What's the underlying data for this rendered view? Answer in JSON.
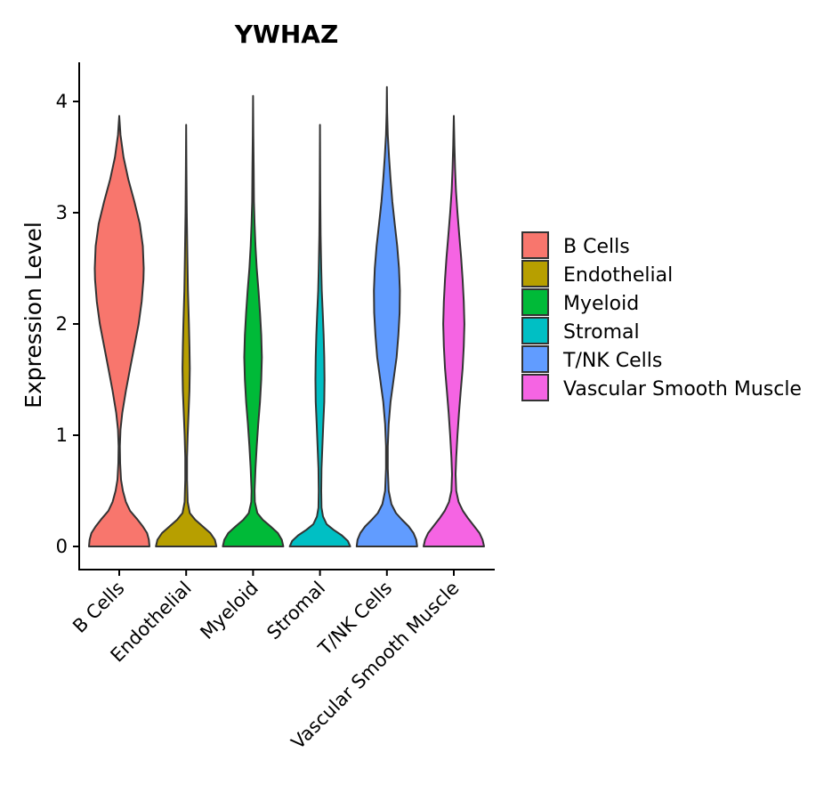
{
  "chart_data": {
    "type": "violin",
    "title": "YWHAZ",
    "xlabel": "",
    "ylabel": "Expression Level",
    "ylim": [
      -0.2,
      4.35
    ],
    "yticks": [
      0,
      1,
      2,
      3,
      4
    ],
    "categories": [
      "B Cells",
      "Endothelial",
      "Myeloid",
      "Stromal",
      "T/NK Cells",
      "Vascular Smooth Muscle"
    ],
    "colors": [
      "#F8766D",
      "#B79F00",
      "#00BA38",
      "#00BFC4",
      "#619CFF",
      "#F564E3"
    ],
    "legend": {
      "title": "",
      "position": "right",
      "entries": [
        "B Cells",
        "Endothelial",
        "Myeloid",
        "Stromal",
        "T/NK Cells",
        "Vascular Smooth Muscle"
      ]
    },
    "series": [
      {
        "name": "B Cells",
        "max": 3.87,
        "density": [
          [
            0,
            1.0
          ],
          [
            0.06,
            0.98
          ],
          [
            0.12,
            0.92
          ],
          [
            0.18,
            0.78
          ],
          [
            0.25,
            0.58
          ],
          [
            0.32,
            0.36
          ],
          [
            0.4,
            0.22
          ],
          [
            0.5,
            0.12
          ],
          [
            0.6,
            0.06
          ],
          [
            0.75,
            0.03
          ],
          [
            0.9,
            0.02
          ],
          [
            1.05,
            0.04
          ],
          [
            1.2,
            0.1
          ],
          [
            1.4,
            0.22
          ],
          [
            1.6,
            0.36
          ],
          [
            1.8,
            0.5
          ],
          [
            2.0,
            0.64
          ],
          [
            2.2,
            0.74
          ],
          [
            2.4,
            0.8
          ],
          [
            2.5,
            0.81
          ],
          [
            2.7,
            0.78
          ],
          [
            2.9,
            0.68
          ],
          [
            3.1,
            0.5
          ],
          [
            3.3,
            0.3
          ],
          [
            3.5,
            0.14
          ],
          [
            3.7,
            0.04
          ],
          [
            3.87,
            0.0
          ]
        ]
      },
      {
        "name": "Endothelial",
        "max": 3.79,
        "density": [
          [
            0,
            1.0
          ],
          [
            0.06,
            0.95
          ],
          [
            0.12,
            0.8
          ],
          [
            0.18,
            0.55
          ],
          [
            0.24,
            0.3
          ],
          [
            0.3,
            0.12
          ],
          [
            0.4,
            0.05
          ],
          [
            0.6,
            0.03
          ],
          [
            0.8,
            0.03
          ],
          [
            1.0,
            0.05
          ],
          [
            1.2,
            0.08
          ],
          [
            1.4,
            0.11
          ],
          [
            1.6,
            0.12
          ],
          [
            1.8,
            0.11
          ],
          [
            2.0,
            0.09
          ],
          [
            2.3,
            0.06
          ],
          [
            2.6,
            0.04
          ],
          [
            3.0,
            0.02
          ],
          [
            3.4,
            0.01
          ],
          [
            3.79,
            0.0
          ]
        ]
      },
      {
        "name": "Myeloid",
        "max": 4.05,
        "density": [
          [
            0,
            1.0
          ],
          [
            0.06,
            0.95
          ],
          [
            0.12,
            0.82
          ],
          [
            0.18,
            0.58
          ],
          [
            0.24,
            0.32
          ],
          [
            0.3,
            0.14
          ],
          [
            0.4,
            0.06
          ],
          [
            0.5,
            0.05
          ],
          [
            0.7,
            0.08
          ],
          [
            0.9,
            0.12
          ],
          [
            1.1,
            0.17
          ],
          [
            1.3,
            0.23
          ],
          [
            1.5,
            0.27
          ],
          [
            1.7,
            0.29
          ],
          [
            1.9,
            0.27
          ],
          [
            2.1,
            0.23
          ],
          [
            2.3,
            0.18
          ],
          [
            2.5,
            0.12
          ],
          [
            2.7,
            0.08
          ],
          [
            2.9,
            0.05
          ],
          [
            3.1,
            0.03
          ],
          [
            3.4,
            0.02
          ],
          [
            3.7,
            0.01
          ],
          [
            4.05,
            0.0
          ]
        ]
      },
      {
        "name": "Stromal",
        "max": 3.79,
        "density": [
          [
            0,
            1.0
          ],
          [
            0.05,
            0.92
          ],
          [
            0.1,
            0.72
          ],
          [
            0.15,
            0.45
          ],
          [
            0.2,
            0.22
          ],
          [
            0.27,
            0.1
          ],
          [
            0.35,
            0.05
          ],
          [
            0.5,
            0.04
          ],
          [
            0.7,
            0.05
          ],
          [
            0.9,
            0.08
          ],
          [
            1.1,
            0.11
          ],
          [
            1.3,
            0.14
          ],
          [
            1.5,
            0.15
          ],
          [
            1.7,
            0.14
          ],
          [
            1.9,
            0.12
          ],
          [
            2.1,
            0.09
          ],
          [
            2.3,
            0.06
          ],
          [
            2.5,
            0.04
          ],
          [
            2.8,
            0.02
          ],
          [
            3.2,
            0.01
          ],
          [
            3.79,
            0.0
          ]
        ]
      },
      {
        "name": "T/NK Cells",
        "max": 4.13,
        "density": [
          [
            0,
            1.0
          ],
          [
            0.06,
            0.97
          ],
          [
            0.12,
            0.88
          ],
          [
            0.18,
            0.72
          ],
          [
            0.24,
            0.5
          ],
          [
            0.3,
            0.3
          ],
          [
            0.38,
            0.15
          ],
          [
            0.5,
            0.06
          ],
          [
            0.7,
            0.03
          ],
          [
            0.9,
            0.03
          ],
          [
            1.1,
            0.06
          ],
          [
            1.3,
            0.12
          ],
          [
            1.5,
            0.22
          ],
          [
            1.7,
            0.32
          ],
          [
            1.9,
            0.38
          ],
          [
            2.1,
            0.42
          ],
          [
            2.3,
            0.43
          ],
          [
            2.5,
            0.4
          ],
          [
            2.7,
            0.34
          ],
          [
            2.9,
            0.26
          ],
          [
            3.1,
            0.18
          ],
          [
            3.3,
            0.12
          ],
          [
            3.5,
            0.07
          ],
          [
            3.7,
            0.03
          ],
          [
            3.9,
            0.01
          ],
          [
            4.13,
            0.0
          ]
        ]
      },
      {
        "name": "Vascular Smooth Muscle",
        "max": 3.87,
        "density": [
          [
            0,
            1.0
          ],
          [
            0.06,
            0.95
          ],
          [
            0.12,
            0.85
          ],
          [
            0.18,
            0.68
          ],
          [
            0.25,
            0.48
          ],
          [
            0.32,
            0.3
          ],
          [
            0.4,
            0.16
          ],
          [
            0.5,
            0.08
          ],
          [
            0.65,
            0.06
          ],
          [
            0.8,
            0.08
          ],
          [
            1.0,
            0.12
          ],
          [
            1.2,
            0.17
          ],
          [
            1.4,
            0.23
          ],
          [
            1.6,
            0.29
          ],
          [
            1.8,
            0.33
          ],
          [
            2.0,
            0.35
          ],
          [
            2.2,
            0.33
          ],
          [
            2.4,
            0.29
          ],
          [
            2.6,
            0.24
          ],
          [
            2.8,
            0.18
          ],
          [
            3.0,
            0.12
          ],
          [
            3.2,
            0.07
          ],
          [
            3.4,
            0.04
          ],
          [
            3.6,
            0.02
          ],
          [
            3.87,
            0.0
          ]
        ]
      }
    ]
  }
}
